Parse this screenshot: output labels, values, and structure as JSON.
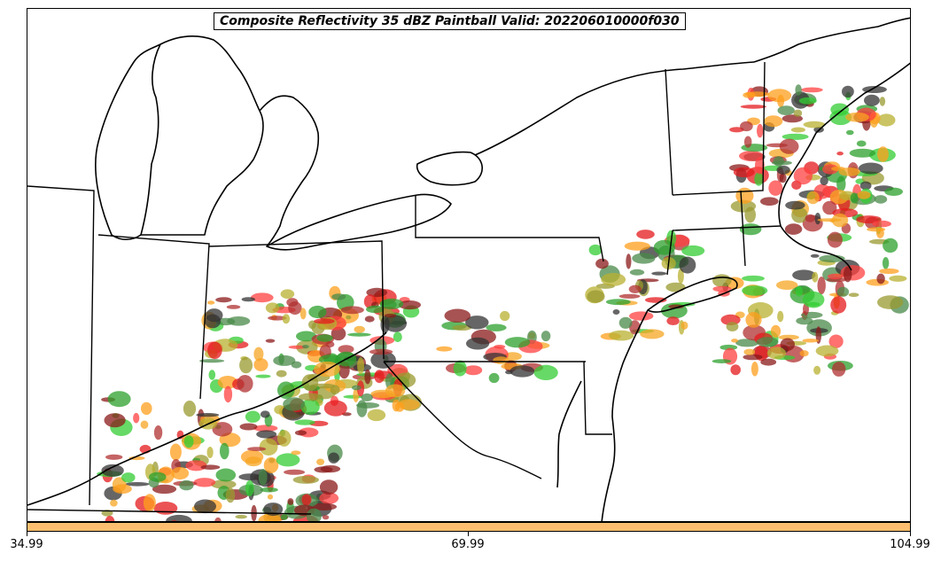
{
  "title": "Composite Reflectivity 35 dBZ Paintball Valid: 202206010000f030",
  "colorbar": {
    "color": "#fdbf6f",
    "ticks": [
      "34.99",
      "69.99",
      "104.99"
    ]
  },
  "paintball_colors": [
    "#2ca02c",
    "#33cc33",
    "#8b1a1a",
    "#b03030",
    "#ff4040",
    "#e41a1c",
    "#ff9f1c",
    "#f5a623",
    "#9a9a30",
    "#b8b030",
    "#333333",
    "#4a8a4a"
  ]
}
